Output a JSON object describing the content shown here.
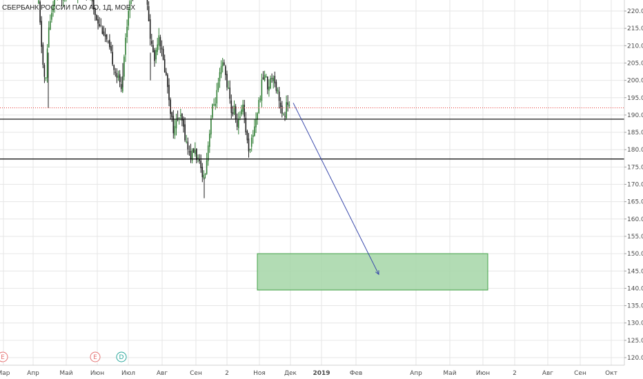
{
  "chart_data": {
    "type": "candlestick",
    "title": "СБЕРБАНК РОССИИ ПАО АО, 1Д, MOEX",
    "ylim": [
      117.5,
      222.5
    ],
    "y_ticks": [
      120,
      125,
      130,
      135,
      140,
      145,
      150,
      155,
      160,
      165,
      170,
      175,
      180,
      185,
      190,
      195,
      200,
      205,
      210,
      215,
      220
    ],
    "x_ticks": [
      "Мар",
      "Апр",
      "Май",
      "Июн",
      "Июл",
      "Авг",
      "Сен",
      "2",
      "Ноя",
      "Дек",
      "2019",
      "Фев",
      "Апр",
      "Май",
      "Июн",
      "2",
      "Авг",
      "Сен",
      "Окт"
    ],
    "last_price": "192.06",
    "levels": [
      {
        "label": "188.80",
        "value": 188.8
      },
      {
        "label": "177.30",
        "value": 177.3
      }
    ],
    "target_zone": {
      "from": 139.5,
      "to": 150.0
    },
    "projection": {
      "from_price": 193.5,
      "to_price": 144.0
    },
    "events": [
      {
        "label": "E",
        "color": "#e57373"
      },
      {
        "label": "E",
        "color": "#e57373"
      },
      {
        "label": "D",
        "color": "#26a69a"
      }
    ],
    "colors": {
      "up": "#2e7d32",
      "down": "#1b1b1b",
      "last_price": "#e53935",
      "level": "#000000",
      "zone_fill": "#a5d6a7",
      "zone_border": "#43a047",
      "arrow": "#3949ab",
      "grid": "#e6e6e6"
    }
  }
}
